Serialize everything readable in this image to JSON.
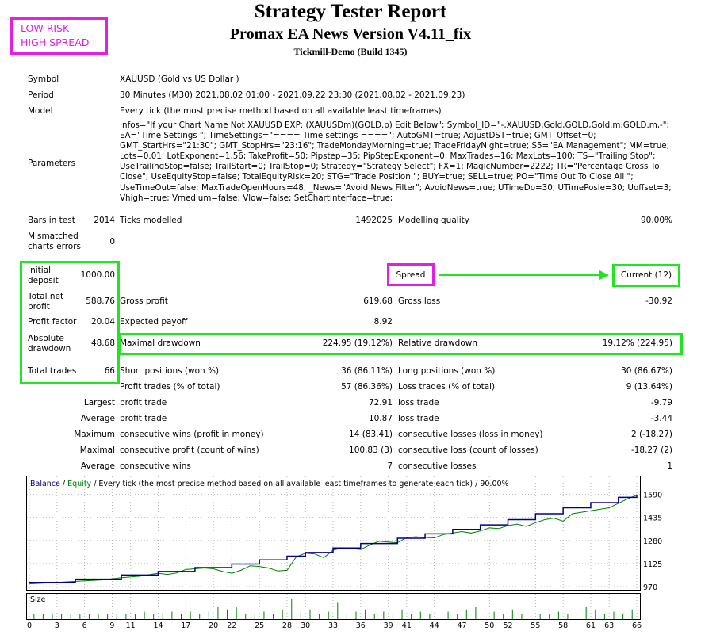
{
  "annotations": {
    "risk_line1": "LOW RISK",
    "risk_line2": "HIGH SPREAD",
    "spread_label": "Spread",
    "spread_value": "Current (12)",
    "colors": {
      "magenta": "#e21fe2",
      "green": "#22e522"
    }
  },
  "header": {
    "title": "Strategy Tester Report",
    "subtitle": "Promax EA News Version V4.11_fix",
    "server": "Tickmill-Demo (Build 1345)"
  },
  "info": {
    "symbol_label": "Symbol",
    "symbol_value": "XAUUSD (Gold vs US Dollar )",
    "period_label": "Period",
    "period_value": "30 Minutes (M30) 2021.08.02 01:00 - 2021.09.22 23:30 (2021.08.02 - 2021.09.23)",
    "model_label": "Model",
    "model_value": "Every tick (the most precise method based on all available least timeframes)",
    "parameters_label": "Parameters",
    "parameters_value": "Infos=\"If your Chart Name Not XAUUSD EXP: (XAUUSDm)(GOLD.p) Edit Below\"; Symbol_ID=\"-,XAUUSD,Gold,GOLD,Gold.m,GOLD.m,-\"; EA=\"Time Settings \"; TimeSettings=\"==== Time settings ====\"; AutoGMT=true; AdjustDST=true; GMT_Offset=0; GMT_StartHrs=\"21:30\"; GMT_StopHrs=\"23:16\"; TradeMondayMorning=true; TradeFridayNight=true; S5=\"EA Management\"; MM=true; Lots=0.01; LotExponent=1.56; TakeProfit=50; Pipstep=35; PipStepExponent=0; MaxTrades=16; MaxLots=100; TS=\"Trailing Stop\"; UseTrailingStop=false; TrailStart=0; TrailStop=0; Strategy=\"Strategy Select\"; FX=1; MagicNumber=2222; TR=\"Percentage Cross To Close\"; UseEquityStop=false; TotalEquityRisk=20; STG=\"Trade Position \"; BUY=true; SELL=true; PO=\"Time Out To Close All \"; UseTimeOut=false; MaxTradeOpenHours=48; _News=\"Avoid News Filter\"; AvoidNews=true; UTimeDo=30; UTimePosle=30; Uoffset=3; Vhigh=true; Vmedium=false; Vlow=false; SetChartInterface=true;"
  },
  "stats": {
    "bars_label": "Bars in test",
    "bars_value": "2014",
    "ticks_label": "Ticks modelled",
    "ticks_value": "1492025",
    "quality_label": "Modelling quality",
    "quality_value": "90.00%",
    "mismatch_label": "Mismatched charts errors",
    "mismatch_value": "0",
    "initial_deposit_label": "Initial deposit",
    "initial_deposit_value": "1000.00",
    "net_profit_label": "Total net profit",
    "net_profit_value": "588.76",
    "gross_profit_label": "Gross profit",
    "gross_profit_value": "619.68",
    "gross_loss_label": "Gross loss",
    "gross_loss_value": "-30.92",
    "profit_factor_label": "Profit factor",
    "profit_factor_value": "20.04",
    "expected_payoff_label": "Expected payoff",
    "expected_payoff_value": "8.92",
    "abs_dd_label": "Absolute drawdown",
    "abs_dd_value": "48.68",
    "max_dd_label": "Maximal drawdown",
    "max_dd_value": "224.95 (19.12%)",
    "rel_dd_label": "Relative drawdown",
    "rel_dd_value": "19.12% (224.95)",
    "total_trades_label": "Total trades",
    "total_trades_value": "66",
    "short_label": "Short positions (won %)",
    "short_value": "36 (86.11%)",
    "long_label": "Long positions (won %)",
    "long_value": "30 (86.67%)",
    "profit_trades_label": "Profit trades (% of total)",
    "profit_trades_value": "57 (86.36%)",
    "loss_trades_label": "Loss trades (% of total)",
    "loss_trades_value": "9 (13.64%)",
    "largest_label": "Largest",
    "largest_profit_label": "profit trade",
    "largest_profit_value": "72.91",
    "largest_loss_label": "loss trade",
    "largest_loss_value": "-9.79",
    "average_label": "Average",
    "average_profit_label": "profit trade",
    "average_profit_value": "10.87",
    "average_loss_label": "loss trade",
    "average_loss_value": "-3.44",
    "maximum_label": "Maximum",
    "max_wins_label": "consecutive wins (profit in money)",
    "max_wins_value": "14 (83.41)",
    "max_losses_label": "consecutive losses (loss in money)",
    "max_losses_value": "2 (-18.27)",
    "maximal_label": "Maximal",
    "maximal_profit_label": "consecutive profit (count of wins)",
    "maximal_profit_value": "100.83 (3)",
    "maximal_loss_label": "consecutive loss (count of losses)",
    "maximal_loss_value": "-18.27 (2)",
    "avg_label": "Average",
    "avg_wins_label": "consecutive wins",
    "avg_wins_value": "7",
    "avg_losses_label": "consecutive losses",
    "avg_losses_value": "1"
  },
  "chart_data": {
    "type": "line",
    "legend": {
      "balance": "Balance",
      "sep": " / ",
      "equity": "Equity",
      "rest": " / Every tick (the most precise method based on all available least timeframes to generate each tick) / 90.00%"
    },
    "colors": {
      "balance": "#00008b",
      "equity": "#008000",
      "size": "#008000"
    },
    "ylim": [
      970,
      1620
    ],
    "y_ticks": [
      1590,
      1435,
      1280,
      1125,
      970
    ],
    "xlim": [
      0,
      66
    ],
    "x_ticks": [
      0,
      3,
      6,
      9,
      11,
      14,
      17,
      20,
      22,
      25,
      28,
      30,
      33,
      36,
      39,
      41,
      44,
      47,
      50,
      52,
      55,
      58,
      61,
      63,
      66
    ],
    "series": [
      {
        "name": "Balance",
        "x": [
          0,
          5,
          10,
          14,
          18,
          22,
          25,
          28,
          30,
          33,
          36,
          40,
          43,
          46,
          49,
          52,
          55,
          58,
          61,
          64,
          66
        ],
        "values": [
          998,
          1020,
          1048,
          1072,
          1098,
          1122,
          1150,
          1175,
          1200,
          1230,
          1260,
          1295,
          1325,
          1355,
          1385,
          1420,
          1460,
          1500,
          1535,
          1570,
          1589
        ]
      },
      {
        "name": "Equity",
        "x": [
          0,
          3,
          5,
          8,
          10,
          12,
          14,
          15,
          16,
          17,
          18,
          19,
          20,
          21,
          22,
          23,
          24,
          25,
          26,
          27,
          28,
          29,
          30,
          31,
          32,
          33,
          34,
          35,
          36,
          37,
          38,
          39,
          40,
          41,
          42,
          43,
          44,
          45,
          46,
          47,
          48,
          49,
          50,
          51,
          52,
          53,
          54,
          55,
          56,
          57,
          58,
          59,
          60,
          61,
          62,
          63,
          64,
          65,
          66
        ],
        "values": [
          988,
          998,
          1005,
          1015,
          1030,
          1040,
          1060,
          1052,
          1062,
          1085,
          1090,
          1095,
          1090,
          1072,
          1060,
          1080,
          1110,
          1105,
          1095,
          1075,
          1080,
          1170,
          1195,
          1190,
          1165,
          1215,
          1230,
          1225,
          1220,
          1250,
          1275,
          1270,
          1265,
          1300,
          1305,
          1300,
          1298,
          1320,
          1330,
          1340,
          1330,
          1345,
          1365,
          1360,
          1380,
          1390,
          1375,
          1400,
          1420,
          1430,
          1410,
          1460,
          1470,
          1480,
          1490,
          1500,
          1530,
          1560,
          1585
        ]
      }
    ],
    "size": {
      "label": "Size",
      "values": [
        1,
        1,
        1,
        1,
        1,
        1,
        1,
        1,
        1,
        1,
        1,
        1,
        2,
        1,
        1,
        2,
        1,
        2,
        1,
        2,
        4,
        3,
        4,
        1,
        1,
        2,
        1,
        3,
        8,
        2,
        3,
        1,
        2,
        6,
        1,
        2,
        3,
        1,
        2,
        1,
        3,
        1,
        2,
        1,
        1,
        2,
        1,
        3,
        4,
        1,
        2,
        1,
        3,
        1,
        2,
        1,
        1,
        2,
        1,
        2,
        4,
        3,
        1,
        2,
        1,
        3
      ]
    }
  }
}
